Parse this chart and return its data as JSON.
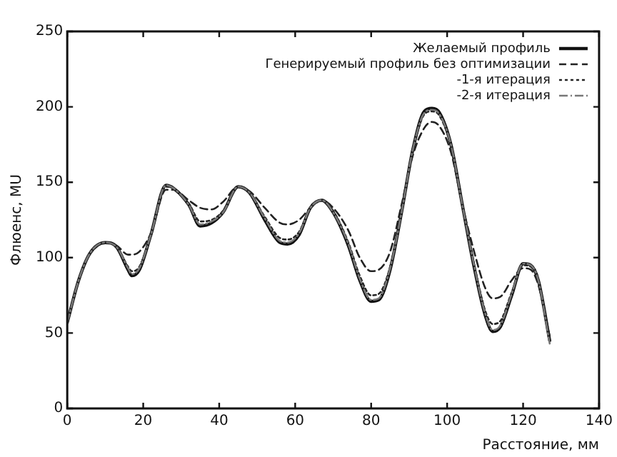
{
  "chart_data": {
    "type": "line",
    "xlabel": "Расстояние, мм",
    "ylabel": "Флюенс, MU",
    "x": [
      0,
      3,
      6,
      10,
      13,
      16,
      17,
      19,
      22,
      26,
      28,
      32,
      35,
      38,
      41,
      45,
      48,
      52,
      56,
      58,
      61,
      64,
      67,
      70,
      74,
      77,
      80,
      82,
      85,
      88,
      91,
      94,
      96,
      98,
      101,
      104,
      107,
      110,
      112,
      114,
      117,
      120,
      122,
      124,
      127
    ],
    "series": [
      {
        "name": "Желаемый профиль",
        "color": "#111111",
        "line_style": "solid",
        "values": [
          57,
          85,
          103,
          110,
          107,
          92,
          88,
          92,
          115,
          148,
          146,
          135,
          121,
          123,
          130,
          147,
          143,
          125,
          110,
          109,
          115,
          133,
          138,
          130,
          108,
          85,
          71,
          72,
          92,
          130,
          172,
          197,
          199,
          196,
          175,
          135,
          95,
          62,
          51,
          54,
          75,
          96,
          95,
          85,
          45
        ]
      },
      {
        "name": "Генерируемый профиль без оптимизации",
        "color": "#222222",
        "line_style": "dashed",
        "values": [
          57,
          85,
          103,
          110,
          108,
          102,
          102,
          104,
          116,
          145,
          145,
          138,
          133,
          132,
          137,
          147,
          144,
          133,
          123,
          122,
          125,
          133,
          138,
          133,
          118,
          100,
          91,
          92,
          104,
          135,
          168,
          186,
          190,
          187,
          170,
          135,
          105,
          80,
          73,
          74,
          85,
          93,
          92,
          82,
          48
        ]
      },
      {
        "name": "-1-я итерация",
        "color": "#222222",
        "line_style": "dotted",
        "values": [
          57,
          85,
          103,
          110,
          107,
          94,
          91,
          94,
          115,
          147,
          146,
          136,
          124,
          125,
          131,
          147,
          143,
          127,
          113,
          112,
          117,
          133,
          138,
          131,
          110,
          88,
          75,
          76,
          94,
          131,
          171,
          195,
          197,
          194,
          174,
          135,
          97,
          65,
          56,
          58,
          77,
          95,
          94,
          84,
          46
        ]
      },
      {
        "name": "-2-я итерация",
        "color": "#777777",
        "line_style": "dashdot",
        "values": [
          57,
          85,
          103,
          110,
          107,
          93,
          89,
          93,
          115,
          148,
          146,
          135,
          122,
          124,
          130,
          147,
          143,
          126,
          111,
          110,
          116,
          133,
          138,
          130,
          109,
          86,
          72,
          73,
          93,
          130,
          172,
          196,
          198,
          195,
          175,
          135,
          96,
          63,
          52,
          55,
          76,
          96,
          95,
          85,
          43
        ]
      }
    ],
    "xlim": [
      0,
      140
    ],
    "xticks": [
      0,
      20,
      40,
      60,
      80,
      100,
      120,
      140
    ],
    "ylim": [
      0,
      250
    ],
    "yticks": [
      0,
      50,
      100,
      150,
      200,
      250
    ],
    "grid": false,
    "legend": "top right",
    "marker": "none"
  }
}
